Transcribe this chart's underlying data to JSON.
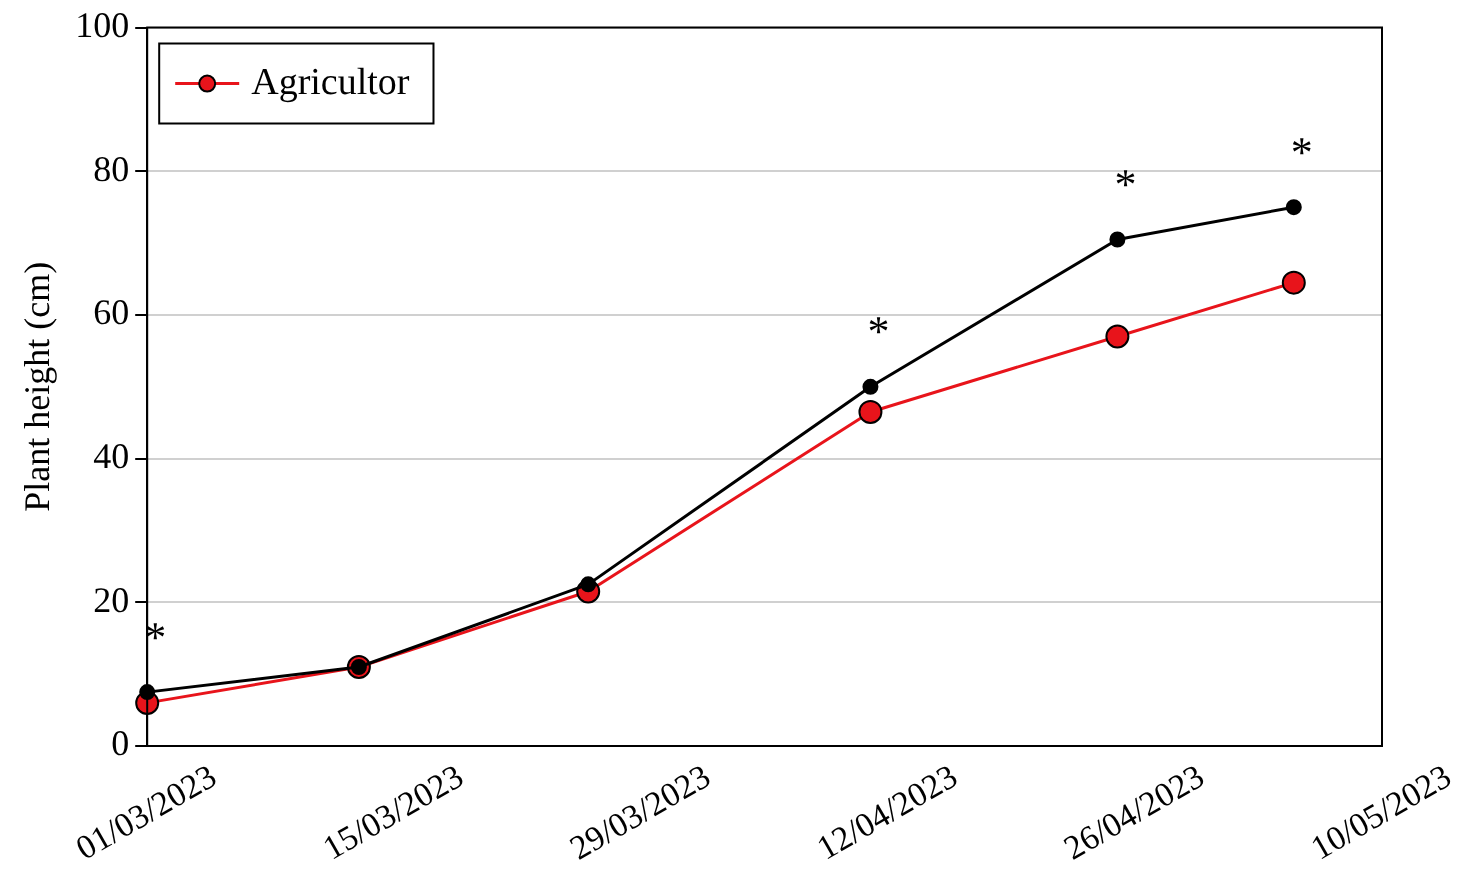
{
  "chart_data": {
    "type": "line",
    "ylabel": "Plant height (cm)",
    "x": [
      "2023-03-01",
      "2023-03-13",
      "2023-03-26",
      "2023-04-11",
      "2023-04-25",
      "2023-05-05"
    ],
    "series": [
      {
        "color": "#000000",
        "values": [
          7.5,
          11,
          22.5,
          50,
          70.5,
          75
        ]
      },
      {
        "name": "Agricultor",
        "color": "#e8141b",
        "values": [
          6,
          11,
          21.5,
          46.5,
          57,
          64.5
        ]
      }
    ],
    "xlim": [
      "2023-03-01",
      "2023-05-10"
    ],
    "xticks": [
      {
        "value": "2023-03-01",
        "label": "01/03/2023"
      },
      {
        "value": "2023-03-15",
        "label": "15/03/2023"
      },
      {
        "value": "2023-03-29",
        "label": "29/03/2023"
      },
      {
        "value": "2023-04-12",
        "label": "12/04/2023"
      },
      {
        "value": "2023-04-26",
        "label": "26/04/2023"
      },
      {
        "value": "2023-05-10",
        "label": "10/05/2023"
      }
    ],
    "ylim": [
      0,
      100
    ],
    "yticks": [
      0,
      20,
      40,
      60,
      80,
      100
    ],
    "annotations": [
      {
        "text": "*",
        "x": "2023-03-01",
        "y": 7.5
      },
      {
        "text": "*",
        "x": "2023-04-11",
        "y": 50
      },
      {
        "text": "*",
        "x": "2023-04-25",
        "y": 70.5
      },
      {
        "text": "*",
        "x": "2023-05-05",
        "y": 75
      }
    ],
    "grid": "y",
    "legend": "top left",
    "marker": "circle",
    "line_style": "solid"
  }
}
